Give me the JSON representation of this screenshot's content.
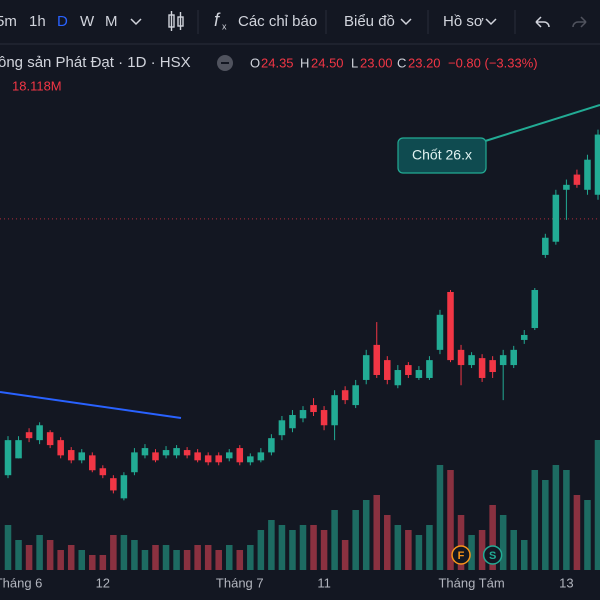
{
  "toolbar": {
    "intervals": [
      "5m",
      "1h",
      "D",
      "W",
      "M"
    ],
    "indicators": "Các chỉ báo",
    "chart_type": "Biểu đồ",
    "profile": "Hồ sơ"
  },
  "legend": {
    "symbol": "ông sản Phát Đạt · 1D · HSX",
    "ohlc": [
      {
        "label": "O",
        "value": "24.35"
      },
      {
        "label": "H",
        "value": "24.50"
      },
      {
        "label": "L",
        "value": "23.00"
      },
      {
        "label": "C",
        "value": "23.20"
      }
    ],
    "change": "−0.80 (−3.33%)",
    "volume": "18.118M"
  },
  "chart_data": {
    "type": "candlestick",
    "annotation": "Chốt 26.x",
    "categories": [
      null,
      "Tháng 6",
      null,
      null,
      null,
      null,
      null,
      null,
      null,
      "12",
      null,
      null,
      null,
      null,
      null,
      null,
      null,
      null,
      null,
      null,
      null,
      null,
      "Tháng 7",
      null,
      null,
      null,
      null,
      null,
      null,
      null,
      "11",
      null,
      null,
      null,
      null,
      null,
      null,
      null,
      null,
      null,
      null,
      null,
      null,
      null,
      "Tháng Tám",
      null,
      null,
      null,
      null,
      null,
      null,
      null,
      null,
      "13",
      null,
      null,
      null
    ],
    "event_labels": [
      null,
      null,
      null,
      null,
      null,
      null,
      null,
      null,
      null,
      null,
      null,
      null,
      null,
      null,
      null,
      null,
      null,
      null,
      null,
      null,
      null,
      null,
      null,
      null,
      null,
      null,
      null,
      null,
      null,
      null,
      null,
      null,
      null,
      null,
      null,
      null,
      null,
      null,
      null,
      null,
      null,
      null,
      null,
      "F",
      null,
      null,
      "S",
      null,
      null,
      null,
      null,
      null,
      null,
      null,
      null,
      null,
      null
    ],
    "open": [
      15.45,
      15.96,
      16.75,
      16.51,
      16.75,
      16.51,
      16.21,
      15.9,
      16.05,
      15.66,
      15.36,
      14.75,
      15.54,
      16.05,
      16.14,
      16.05,
      16.05,
      16.21,
      16.14,
      16.05,
      16.05,
      15.96,
      16.27,
      15.84,
      15.9,
      16.14,
      16.66,
      16.87,
      17.17,
      17.57,
      17.42,
      16.96,
      18.02,
      17.57,
      18.33,
      19.39,
      18.93,
      18.17,
      18.78,
      18.39,
      18.39,
      19.24,
      20.99,
      19.24,
      18.78,
      18.99,
      18.93,
      18.78,
      18.78,
      19.54,
      19.9,
      22.11,
      22.51,
      24.08,
      24.54,
      24.08,
      23.93
    ],
    "high": [
      16.63,
      16.63,
      16.87,
      17.05,
      16.81,
      16.6,
      16.3,
      16.24,
      16.14,
      15.75,
      15.45,
      15.54,
      16.27,
      16.39,
      16.24,
      16.33,
      16.36,
      16.3,
      16.24,
      16.14,
      16.14,
      16.24,
      16.36,
      16.11,
      16.27,
      16.69,
      17.24,
      17.42,
      17.54,
      17.78,
      17.54,
      18.02,
      18.14,
      18.33,
      19.24,
      20.08,
      19.05,
      18.78,
      18.87,
      18.75,
      19.05,
      20.45,
      21.05,
      19.39,
      19.17,
      19.11,
      19.05,
      19.24,
      19.36,
      19.84,
      21.11,
      22.75,
      24.08,
      24.39,
      24.69,
      25.14,
      25.9
    ],
    "low": [
      15.36,
      15.96,
      16.45,
      16.39,
      16.27,
      15.96,
      15.81,
      15.81,
      15.54,
      15.36,
      14.9,
      14.69,
      15.45,
      15.96,
      15.84,
      15.96,
      15.96,
      15.96,
      15.84,
      15.75,
      15.75,
      15.87,
      15.75,
      15.75,
      15.84,
      16.05,
      16.51,
      16.75,
      17.05,
      17.24,
      16.81,
      16.51,
      17.6,
      17.48,
      18.2,
      18.39,
      18.2,
      18.08,
      18.39,
      18.33,
      18.33,
      19.11,
      18.87,
      18.17,
      18.69,
      18.27,
      18.39,
      17.72,
      18.69,
      19.42,
      19.84,
      22.02,
      22.42,
      23.17,
      24.14,
      23.93,
      23.78
    ],
    "close": [
      16.51,
      16.51,
      16.57,
      16.96,
      16.36,
      16.05,
      15.9,
      16.14,
      15.6,
      15.45,
      14.99,
      15.45,
      16.14,
      16.27,
      15.9,
      16.21,
      16.27,
      16.05,
      15.9,
      15.84,
      15.84,
      16.14,
      15.84,
      16.02,
      16.14,
      16.57,
      17.11,
      17.27,
      17.42,
      17.36,
      16.96,
      17.87,
      17.72,
      18.17,
      19.08,
      18.48,
      18.33,
      18.63,
      18.48,
      18.63,
      18.93,
      20.3,
      18.93,
      18.78,
      19.08,
      18.39,
      18.57,
      19.08,
      19.24,
      19.69,
      21.05,
      22.63,
      23.93,
      24.23,
      24.23,
      24.99,
      25.75
    ],
    "volume": [
      9,
      6,
      5,
      7,
      6,
      4,
      5,
      4,
      3,
      3,
      7,
      7,
      6,
      4,
      5,
      5,
      4,
      4,
      5,
      5,
      4,
      5,
      4,
      5,
      8,
      10,
      9,
      8,
      9,
      9,
      8,
      12,
      6,
      12,
      14,
      15,
      11,
      9,
      8,
      7,
      9,
      21,
      20,
      11,
      7,
      8,
      13,
      11,
      8,
      6,
      20,
      18,
      21,
      20,
      15,
      14,
      26
    ],
    "ylim": [
      14.7,
      27.4
    ],
    "volume_ylim": [
      0,
      26
    ],
    "up_color": "#22ab94",
    "down_color": "#f23645",
    "volume_up_color": "#1d6b62",
    "volume_down_color": "#8a3140"
  }
}
